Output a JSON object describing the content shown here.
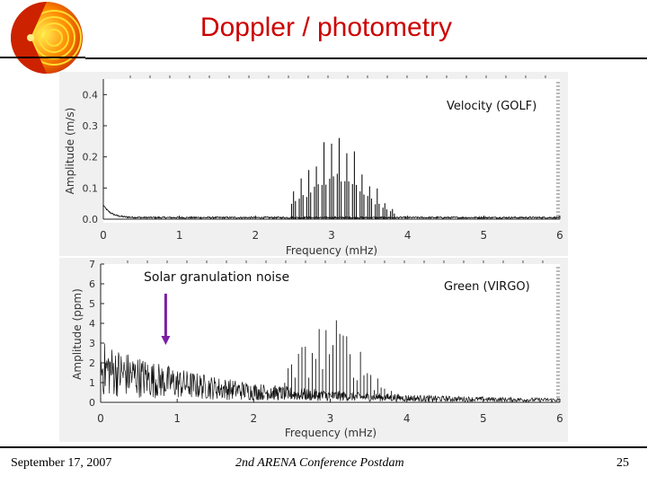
{
  "slide": {
    "title": "Doppler / photometry",
    "footer_date": "September 17, 2007",
    "footer_conference": "2nd ARENA Conference Postdam",
    "page_number": "25",
    "title_color": "#cc0000",
    "annotation_color": "#7b1fa2"
  },
  "chart_data": [
    {
      "type": "line",
      "label": "Velocity (GOLF)",
      "xlabel": "Frequency (mHz)",
      "ylabel": "Amplitude (m/s)",
      "xlim": [
        0,
        6
      ],
      "ylim": [
        0,
        0.45
      ],
      "x_ticks": [
        "0",
        "1",
        "2",
        "3",
        "4",
        "5",
        "6"
      ],
      "y_ticks": [
        "0.0",
        "0.1",
        "0.2",
        "0.3",
        "0.4"
      ],
      "peaks_mhz": [
        2.5,
        2.6,
        2.7,
        2.8,
        2.9,
        3.0,
        3.1,
        3.2,
        3.3,
        3.4,
        3.5,
        3.6,
        3.7,
        3.8
      ],
      "peak_envelope_center_mhz": 3.05,
      "max_peak_amplitude": 0.27,
      "low_freq_rise": 0.04,
      "noise_floor": 0.005
    },
    {
      "type": "line",
      "label": "Green (VIRGO)",
      "xlabel": "Frequency (mHz)",
      "ylabel": "Amplitude (ppm)",
      "xlim": [
        0,
        6
      ],
      "ylim": [
        0,
        7
      ],
      "x_ticks": [
        "0",
        "1",
        "2",
        "3",
        "4",
        "5",
        "6"
      ],
      "y_ticks": [
        "0",
        "1",
        "2",
        "3",
        "4",
        "5",
        "6",
        "7"
      ],
      "annotation": "Solar granulation noise",
      "annotation_target_mhz": 0.85,
      "max_peak_amplitude": 4.3,
      "low_freq_noise": 3.0
    }
  ]
}
